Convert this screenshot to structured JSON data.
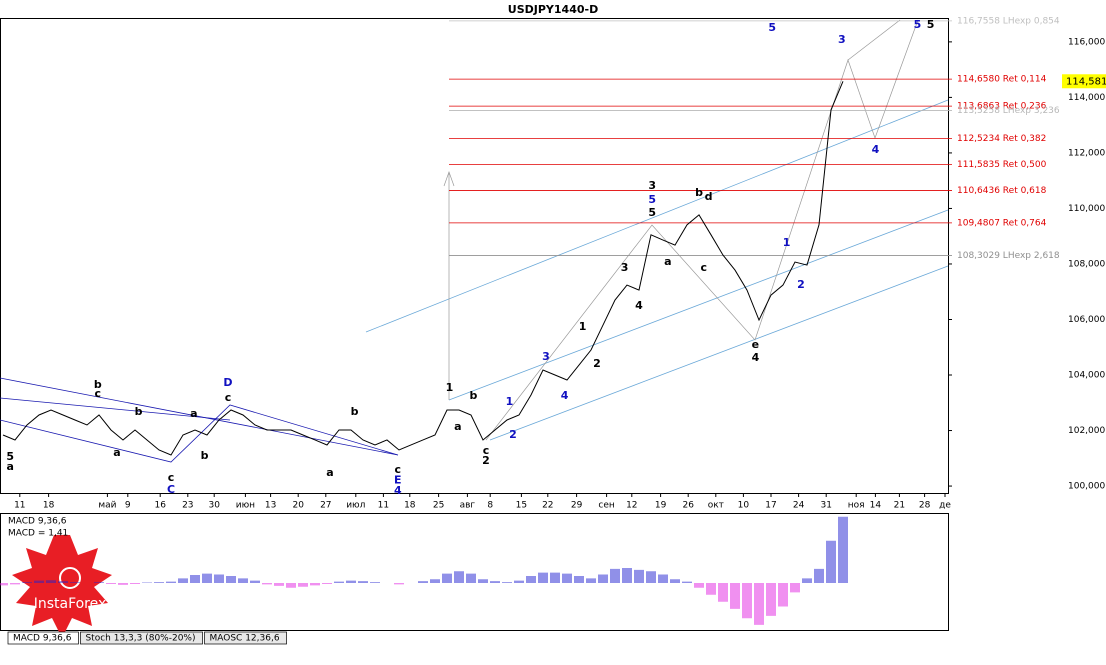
{
  "chart_data": [
    {
      "type": "line",
      "title": "USDJPY1440-D",
      "x": [
        0,
        1,
        2,
        3,
        4,
        5,
        6,
        7,
        8,
        9,
        10,
        11,
        12,
        13,
        14,
        15,
        16,
        17,
        18,
        19,
        20,
        21,
        22,
        23,
        24,
        25,
        26,
        27,
        28,
        29,
        30,
        31,
        32,
        33,
        34,
        35,
        36,
        37,
        38,
        39,
        40,
        41,
        42,
        43,
        44,
        45,
        46,
        47,
        48,
        49,
        50,
        51,
        52,
        53,
        54,
        55,
        56,
        57,
        58,
        59,
        60,
        61,
        62,
        63,
        64,
        65,
        66,
        67,
        68,
        69,
        70
      ],
      "series": [
        {
          "color": "#000000",
          "values": [
            101.84,
            101.66,
            102.2,
            102.56,
            102.74,
            102.56,
            102.38,
            102.2,
            102.56,
            102.02,
            101.66,
            102.02,
            101.66,
            101.3,
            101.12,
            101.84,
            102.02,
            101.84,
            102.38,
            102.74,
            102.56,
            102.2,
            102.02,
            102.02,
            102.02,
            101.84,
            101.66,
            101.48,
            102.02,
            102.02,
            101.66,
            101.48,
            101.66,
            101.3,
            101.48,
            101.66,
            101.84,
            102.74,
            102.74,
            102.56,
            101.66,
            102.02,
            102.38,
            102.56,
            103.28,
            104.18,
            104.0,
            103.82,
            104.36,
            104.9,
            105.8,
            106.7,
            107.24,
            107.06,
            109.05,
            108.86,
            108.68,
            109.41,
            109.77,
            109.05,
            108.32,
            107.78,
            107.06,
            105.98,
            106.88,
            107.24,
            108.07,
            107.96,
            109.41,
            113.55,
            114.58
          ]
        }
      ],
      "xlim": [
        -0.25,
        78.75
      ],
      "xticks": [
        {
          "value": 1.4,
          "label": "11"
        },
        {
          "value": 3.8,
          "label": "18"
        },
        {
          "value": 8.7,
          "label": "май"
        },
        {
          "value": 10.4,
          "label": "9"
        },
        {
          "value": 13.1,
          "label": "16"
        },
        {
          "value": 15.4,
          "label": "23"
        },
        {
          "value": 17.6,
          "label": "30"
        },
        {
          "value": 20.2,
          "label": "июн"
        },
        {
          "value": 22.3,
          "label": "13"
        },
        {
          "value": 24.6,
          "label": "20"
        },
        {
          "value": 26.9,
          "label": "27"
        },
        {
          "value": 29.4,
          "label": "июл"
        },
        {
          "value": 31.7,
          "label": "11"
        },
        {
          "value": 33.9,
          "label": "18"
        },
        {
          "value": 36.3,
          "label": "25"
        },
        {
          "value": 38.7,
          "label": "авг"
        },
        {
          "value": 40.6,
          "label": "8"
        },
        {
          "value": 43.2,
          "label": "15"
        },
        {
          "value": 45.4,
          "label": "22"
        },
        {
          "value": 47.8,
          "label": "29"
        },
        {
          "value": 50.3,
          "label": "сен"
        },
        {
          "value": 52.4,
          "label": "12"
        },
        {
          "value": 54.8,
          "label": "19"
        },
        {
          "value": 57.1,
          "label": "26"
        },
        {
          "value": 59.4,
          "label": "окт"
        },
        {
          "value": 61.7,
          "label": "10"
        },
        {
          "value": 64,
          "label": "17"
        },
        {
          "value": 66.3,
          "label": "24"
        },
        {
          "value": 68.6,
          "label": "31"
        },
        {
          "value": 71.1,
          "label": "ноя"
        },
        {
          "value": 72.7,
          "label": "14"
        },
        {
          "value": 74.7,
          "label": "21"
        },
        {
          "value": 76.8,
          "label": "28"
        },
        {
          "value": 78.5,
          "label": "де"
        }
      ],
      "ylim": [
        99.75,
        116.86
      ],
      "yticks": [
        {
          "value": 100,
          "label": "100,000"
        },
        {
          "value": 102,
          "label": "102,000"
        },
        {
          "value": 104,
          "label": "104,000"
        },
        {
          "value": 106,
          "label": "106,000"
        },
        {
          "value": 108,
          "label": "108,000"
        },
        {
          "value": 110,
          "label": "110,000"
        },
        {
          "value": 112,
          "label": "112,000"
        },
        {
          "value": 114,
          "label": "114,000"
        },
        {
          "value": 116,
          "label": "116,000"
        }
      ],
      "current_price": {
        "value": 114.581,
        "label": "114,581"
      },
      "levels": [
        {
          "value": 116.7558,
          "label": "116,7558 LHexp 0,854",
          "color": "#c0c0c0"
        },
        {
          "value": 114.658,
          "label": "114,6580 Ret 0,114",
          "color": "#e00000"
        },
        {
          "value": 113.6863,
          "label": "113,6863 Ret 0,236",
          "color": "#e00000"
        },
        {
          "value": 113.5258,
          "label": "113,5258 LHexp 3,236",
          "color": "#b8b8b8"
        },
        {
          "value": 112.5234,
          "label": "112,5234 Ret 0,382",
          "color": "#e00000"
        },
        {
          "value": 111.5835,
          "label": "111,5835 Ret 0,500",
          "color": "#e00000"
        },
        {
          "value": 110.6436,
          "label": "110,6436 Ret 0,618",
          "color": "#e00000"
        },
        {
          "value": 109.4807,
          "label": "109,4807 Ret 0,764",
          "color": "#e00000"
        },
        {
          "value": 108.3029,
          "label": "108,3029 LHexp 2,618",
          "color": "#909090"
        }
      ],
      "annotations": [
        {
          "text": "5",
          "x": 64.1,
          "y": 116.5,
          "color": "#1010c0"
        },
        {
          "text": "3",
          "x": 69.9,
          "y": 116.07,
          "color": "#1010c0"
        },
        {
          "text": "5",
          "x": 76.2,
          "y": 116.6,
          "color": "#1010c0"
        },
        {
          "text": "5",
          "x": 77.3,
          "y": 116.6,
          "color": "#000000"
        },
        {
          "text": "4",
          "x": 72.7,
          "y": 112.11,
          "color": "#1010c0"
        },
        {
          "text": "3",
          "x": 54.1,
          "y": 110.81,
          "color": "#000000"
        },
        {
          "text": "5",
          "x": 54.1,
          "y": 110.31,
          "color": "#1010c0"
        },
        {
          "text": "5",
          "x": 54.1,
          "y": 109.84,
          "color": "#000000"
        },
        {
          "text": "b",
          "x": 58,
          "y": 110.56,
          "color": "#000000"
        },
        {
          "text": "d",
          "x": 58.8,
          "y": 110.41,
          "color": "#000000"
        },
        {
          "text": "a",
          "x": 55.4,
          "y": 108.07,
          "color": "#000000"
        },
        {
          "text": "c",
          "x": 58.4,
          "y": 107.86,
          "color": "#000000"
        },
        {
          "text": "e",
          "x": 62.7,
          "y": 105.08,
          "color": "#000000"
        },
        {
          "text": "4",
          "x": 62.7,
          "y": 104.61,
          "color": "#000000"
        },
        {
          "text": "1",
          "x": 65.3,
          "y": 108.76,
          "color": "#1010c0"
        },
        {
          "text": "2",
          "x": 66.5,
          "y": 107.24,
          "color": "#1010c0"
        },
        {
          "text": "3",
          "x": 51.8,
          "y": 107.86,
          "color": "#000000"
        },
        {
          "text": "4",
          "x": 53,
          "y": 106.49,
          "color": "#000000"
        },
        {
          "text": "1",
          "x": 48.3,
          "y": 105.73,
          "color": "#000000"
        },
        {
          "text": "2",
          "x": 49.5,
          "y": 104.4,
          "color": "#000000"
        },
        {
          "text": "3",
          "x": 45.25,
          "y": 104.65,
          "color": "#1010c0"
        },
        {
          "text": "4",
          "x": 46.8,
          "y": 103.24,
          "color": "#1010c0"
        },
        {
          "text": "1",
          "x": 42.2,
          "y": 103.03,
          "color": "#1010c0"
        },
        {
          "text": "2",
          "x": 42.5,
          "y": 101.84,
          "color": "#1010c0"
        },
        {
          "text": "1",
          "x": 37.2,
          "y": 103.53,
          "color": "#000000"
        },
        {
          "text": "b",
          "x": 39.2,
          "y": 103.24,
          "color": "#000000"
        },
        {
          "text": "a",
          "x": 37.9,
          "y": 102.13,
          "color": "#000000"
        },
        {
          "text": "c",
          "x": 40.25,
          "y": 101.26,
          "color": "#000000"
        },
        {
          "text": "2",
          "x": 40.25,
          "y": 100.9,
          "color": "#000000"
        },
        {
          "text": "D",
          "x": 18.75,
          "y": 103.71,
          "color": "#1010c0"
        },
        {
          "text": "c",
          "x": 18.75,
          "y": 103.17,
          "color": "#000000"
        },
        {
          "text": "b",
          "x": 7.9,
          "y": 103.64,
          "color": "#000000"
        },
        {
          "text": "c",
          "x": 7.9,
          "y": 103.32,
          "color": "#000000"
        },
        {
          "text": "c",
          "x": 14,
          "y": 100.29,
          "color": "#000000"
        },
        {
          "text": "C",
          "x": 14,
          "y": 99.86,
          "color": "#1010c0"
        },
        {
          "text": "c",
          "x": 32.9,
          "y": 100.58,
          "color": "#000000"
        },
        {
          "text": "E",
          "x": 32.9,
          "y": 100.2,
          "color": "#1010c0"
        },
        {
          "text": "4",
          "x": 32.9,
          "y": 99.82,
          "color": "#1010c0"
        },
        {
          "text": "b",
          "x": 29.3,
          "y": 102.67,
          "color": "#000000"
        },
        {
          "text": "a",
          "x": 27.25,
          "y": 100.47,
          "color": "#000000"
        },
        {
          "text": "a",
          "x": 15.9,
          "y": 102.6,
          "color": "#000000"
        },
        {
          "text": "b",
          "x": 16.8,
          "y": 101.08,
          "color": "#000000"
        },
        {
          "text": "b",
          "x": 11.3,
          "y": 102.67,
          "color": "#000000"
        },
        {
          "text": "a",
          "x": 9.5,
          "y": 101.19,
          "color": "#000000"
        },
        {
          "text": "5",
          "x": 0.6,
          "y": 101.05,
          "color": "#000000"
        },
        {
          "text": "a",
          "x": 0.6,
          "y": 100.68,
          "color": "#000000"
        }
      ]
    },
    {
      "type": "bar",
      "title": "MACD 9,36,6",
      "subtitle": "MACD = 1,41",
      "x": [
        0,
        1,
        2,
        3,
        4,
        5,
        6,
        7,
        8,
        9,
        10,
        11,
        12,
        13,
        14,
        15,
        16,
        17,
        18,
        19,
        20,
        21,
        22,
        23,
        24,
        25,
        26,
        27,
        28,
        29,
        30,
        31,
        32,
        33,
        34,
        35,
        36,
        37,
        38,
        39,
        40,
        41,
        42,
        43,
        44,
        45,
        46,
        47,
        48,
        49,
        50,
        51,
        52,
        53,
        54,
        55,
        56,
        57,
        58,
        59,
        60,
        61,
        62,
        63,
        64,
        65,
        66,
        67,
        68,
        69,
        70
      ],
      "values": [
        -0.05,
        -0.03,
        0.02,
        0.05,
        0.06,
        0.04,
        0.02,
        0.0,
        0.02,
        -0.02,
        -0.04,
        -0.02,
        0.01,
        0.02,
        0.03,
        0.1,
        0.17,
        0.2,
        0.18,
        0.15,
        0.1,
        0.05,
        -0.03,
        -0.06,
        -0.1,
        -0.08,
        -0.05,
        -0.02,
        0.03,
        0.05,
        0.04,
        0.02,
        0.0,
        -0.03,
        0.0,
        0.04,
        0.08,
        0.2,
        0.25,
        0.2,
        0.08,
        0.04,
        0.02,
        0.05,
        0.15,
        0.22,
        0.22,
        0.2,
        0.15,
        0.1,
        0.18,
        0.3,
        0.32,
        0.28,
        0.25,
        0.18,
        0.08,
        0.03,
        -0.1,
        -0.25,
        -0.4,
        -0.55,
        -0.75,
        -0.89,
        -0.7,
        -0.5,
        -0.2,
        0.1,
        0.3,
        0.9,
        1.41
      ],
      "colors": {
        "positive": "#2020d0",
        "negative": "#e020e0"
      },
      "xlim": [
        -0.25,
        78.75
      ],
      "ylim": [
        -1.0,
        1.49
      ]
    }
  ],
  "tabs": [
    "MACD 9,36,6",
    "Stoch 13,3,3 (80%-20%)",
    "MAOSC 12,36,6"
  ],
  "logo": "InstaForex"
}
